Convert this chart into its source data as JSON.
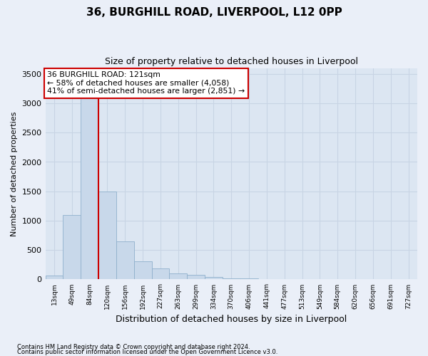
{
  "title": "36, BURGHILL ROAD, LIVERPOOL, L12 0PP",
  "subtitle": "Size of property relative to detached houses in Liverpool",
  "xlabel": "Distribution of detached houses by size in Liverpool",
  "ylabel": "Number of detached properties",
  "footnote1": "Contains HM Land Registry data © Crown copyright and database right 2024.",
  "footnote2": "Contains public sector information licensed under the Open Government Licence v3.0.",
  "annotation_title": "36 BURGHILL ROAD: 121sqm",
  "annotation_line1": "← 58% of detached houses are smaller (4,058)",
  "annotation_line2": "41% of semi-detached houses are larger (2,851) →",
  "bar_color": "#c8d8ea",
  "bar_edge_color": "#8fb0cc",
  "vline_color": "#cc0000",
  "annotation_box_color": "#ffffff",
  "annotation_box_edge": "#cc0000",
  "bins": [
    "13sqm",
    "49sqm",
    "84sqm",
    "120sqm",
    "156sqm",
    "192sqm",
    "227sqm",
    "263sqm",
    "299sqm",
    "334sqm",
    "370sqm",
    "406sqm",
    "441sqm",
    "477sqm",
    "513sqm",
    "549sqm",
    "584sqm",
    "620sqm",
    "656sqm",
    "691sqm",
    "727sqm"
  ],
  "values": [
    70,
    1100,
    3400,
    1500,
    650,
    310,
    185,
    100,
    75,
    40,
    18,
    18,
    8,
    5,
    4,
    3,
    2,
    1,
    1,
    1,
    0
  ],
  "ylim": [
    0,
    3600
  ],
  "yticks": [
    0,
    500,
    1000,
    1500,
    2000,
    2500,
    3000,
    3500
  ],
  "vline_x": 2.5,
  "grid_color": "#c8d4e4",
  "bg_color": "#dce6f2",
  "fig_bg_color": "#eaeff8"
}
